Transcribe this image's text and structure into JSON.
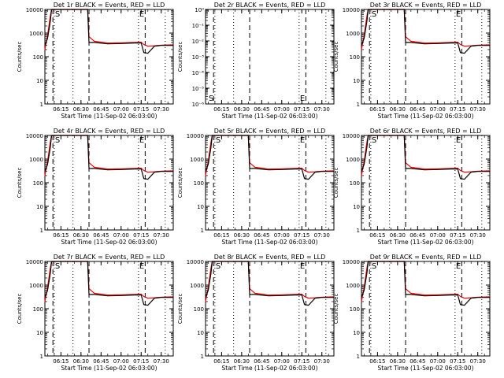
{
  "colors": {
    "events": "#000000",
    "lld": "#ff0000",
    "axis": "#000000",
    "background": "#ffffff"
  },
  "common": {
    "x_ticks": [
      "06:15",
      "06:30",
      "06:45",
      "07:00",
      "07:15",
      "07:30"
    ],
    "x_label": "Start Time (11-Sep-02 06:03:00)",
    "y_label": "Counts/sec",
    "y_ticks_log": [
      "1",
      "10",
      "100",
      "1000",
      "10000"
    ]
  },
  "panels": [
    {
      "title": "Det 1r BLACK = Events, RED = LLD",
      "markers": [
        "S",
        "E"
      ]
    },
    {
      "title": "Det 2r BLACK = Events, RED = LLD",
      "markers": [
        "S",
        "E"
      ]
    },
    {
      "title": "Det 3r BLACK = Events, RED = LLD",
      "markers": [
        "S",
        "E"
      ]
    },
    {
      "title": "Det 4r BLACK = Events, RED = LLD",
      "markers": [
        "S",
        "E"
      ]
    },
    {
      "title": "Det 5r BLACK = Events, RED = LLD",
      "markers": [
        "S",
        "E"
      ]
    },
    {
      "title": "Det 6r BLACK = Events, RED = LLD",
      "markers": [
        "S",
        "E"
      ]
    },
    {
      "title": "Det 7r BLACK = Events, RED = LLD",
      "markers": [
        "S",
        "E"
      ]
    },
    {
      "title": "Det 8r BLACK = Events, RED = LLD",
      "markers": [
        "S",
        "E"
      ]
    },
    {
      "title": "Det 9r BLACK = Events, RED = LLD",
      "markers": [
        "S",
        "E"
      ]
    }
  ],
  "panel2_y_ticks": [
    "10⁻⁶",
    "10⁻⁵",
    "10⁻⁴",
    "10⁻³",
    "10⁻²",
    "10⁻¹",
    "10⁰"
  ],
  "chart_data": {
    "type": "line",
    "x_unit": "time (HH:MM, 11-Sep-02)",
    "x_range": [
      "06:03",
      "07:39"
    ],
    "y_scale": "log",
    "ylim": [
      1,
      10000
    ],
    "vertical_lines": {
      "dashed": [
        "06:09",
        "06:36",
        "07:18"
      ],
      "dotted": [
        "06:10",
        "06:24",
        "07:13",
        "07:33"
      ]
    },
    "series": [
      {
        "name": "Events",
        "color": "#000000",
        "x": [
          "06:03",
          "06:05",
          "06:07",
          "06:08",
          "06:09",
          "06:35",
          "06:36",
          "06:40",
          "06:50",
          "07:00",
          "07:10",
          "07:15",
          "07:17",
          "07:20",
          "07:25",
          "07:30",
          "07:39"
        ],
        "y": [
          300,
          600,
          3000,
          10000,
          10000,
          10000,
          400,
          400,
          350,
          360,
          380,
          380,
          150,
          140,
          280,
          300,
          300
        ]
      },
      {
        "name": "LLD",
        "color": "#ff0000",
        "x": [
          "06:03",
          "06:05",
          "06:07",
          "06:08",
          "06:09",
          "06:35",
          "06:36",
          "06:40",
          "06:50",
          "07:00",
          "07:10",
          "07:15",
          "07:17",
          "07:20",
          "07:25",
          "07:30",
          "07:39"
        ],
        "y": [
          200,
          800,
          5000,
          10000,
          10000,
          10000,
          700,
          450,
          380,
          390,
          400,
          410,
          330,
          280,
          290,
          310,
          320
        ]
      }
    ],
    "panel_2_note": "Det 2r shows no data; y axis spans 1e-6 to 1e0"
  }
}
